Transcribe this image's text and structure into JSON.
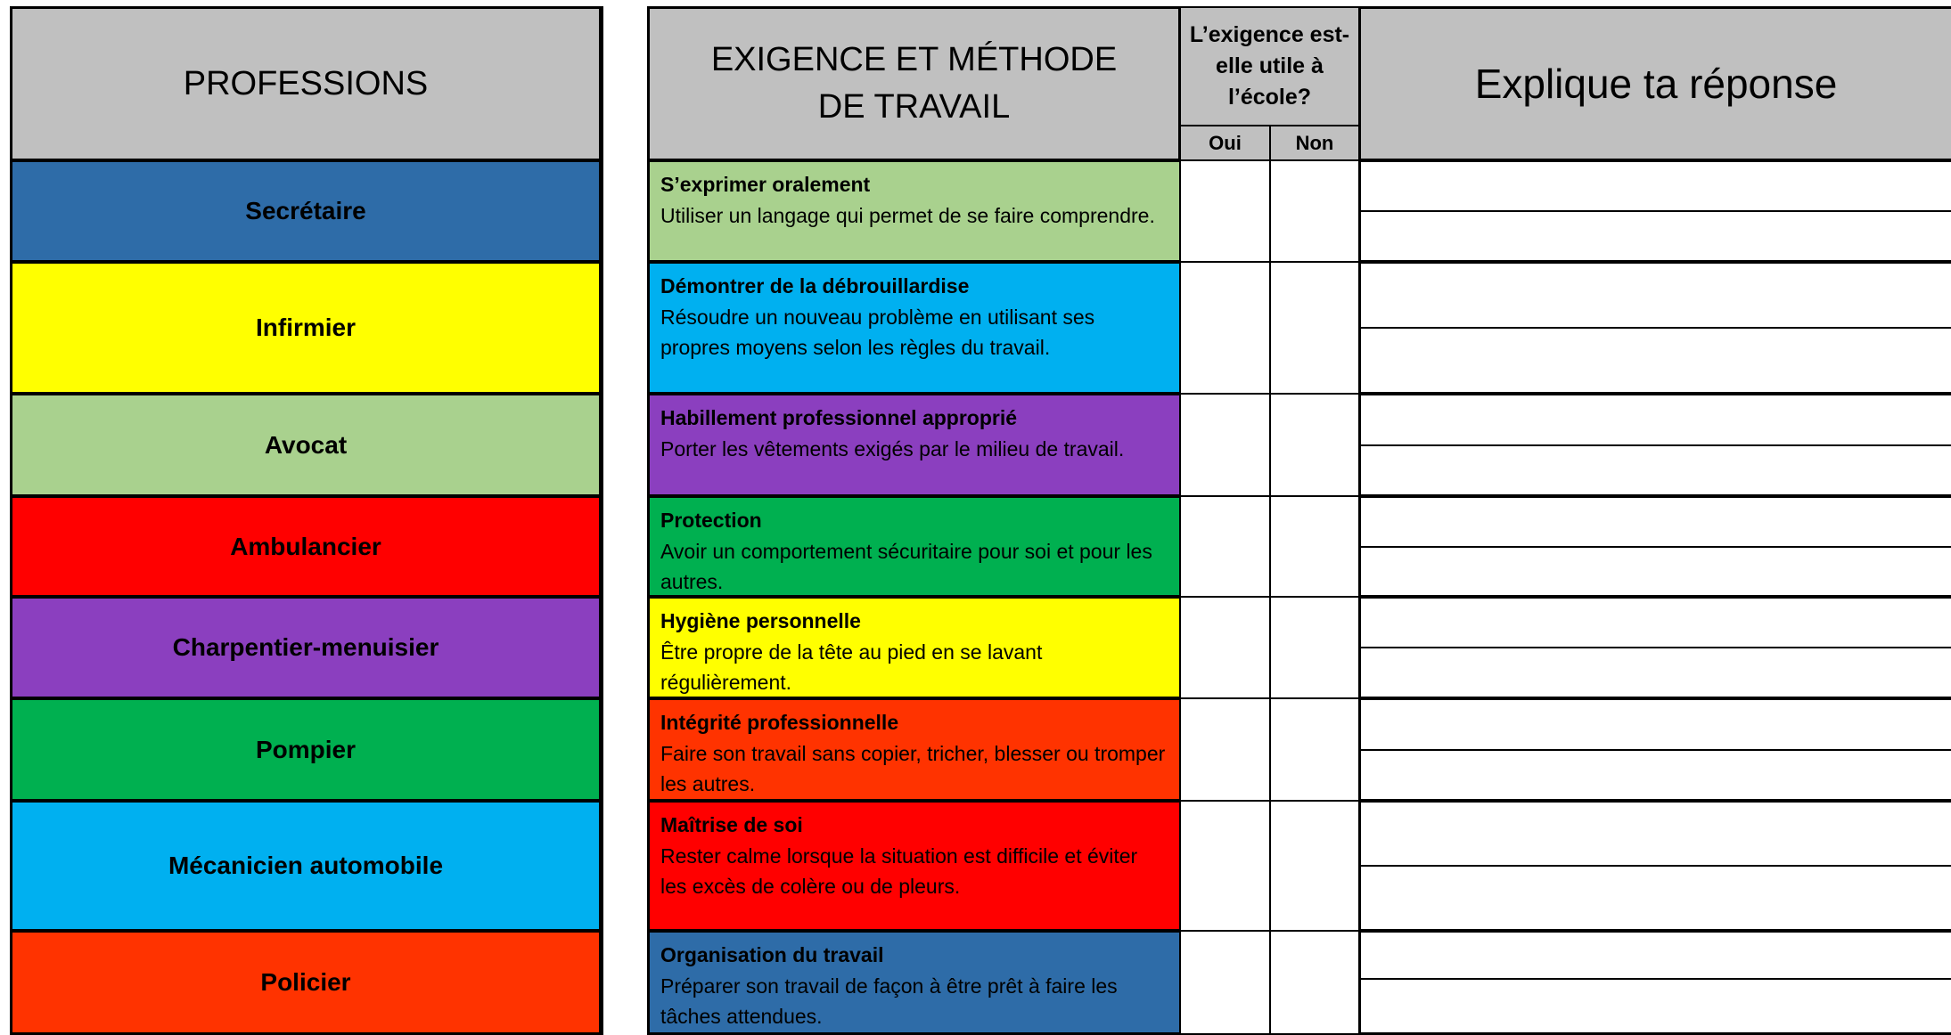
{
  "professions": {
    "header": "PROFESSIONS",
    "rows": [
      "Secrétaire",
      "Infirmier",
      "Avocat",
      "Ambulancier",
      "Charpentier-menuisier",
      "Pompier",
      "Mécanicien automobile",
      "Policier"
    ]
  },
  "requirements": {
    "header": "EXIGENCE ET MÉTHODE DE TRAVAIL",
    "question": "L’exigence est-elle utile à l’école?",
    "yes": "Oui",
    "no": "Non",
    "explain": "Explique ta réponse",
    "rows": [
      {
        "title": "S’exprimer oralement",
        "description": "Utiliser un langage qui permet de se faire comprendre."
      },
      {
        "title": "Démontrer de la débrouillardise",
        "description": "Résoudre un nouveau problème en utilisant ses propres moyens selon les règles du travail."
      },
      {
        "title": "Habillement professionnel approprié",
        "description": "Porter les vêtements exigés par le milieu de travail."
      },
      {
        "title": "Protection",
        "description": "Avoir un comportement sécuritaire pour soi et pour les autres."
      },
      {
        "title": "Hygiène personnelle",
        "description": "Être propre de la tête au pied en se lavant régulièrement."
      },
      {
        "title": "Intégrité professionnelle",
        "description": "Faire son travail sans copier, tricher, blesser ou tromper les autres."
      },
      {
        "title": "Maîtrise de soi",
        "description": "Rester calme lorsque la situation est difficile et éviter les excès de colère ou de pleurs."
      },
      {
        "title": "Organisation du travail",
        "description": "Préparer son travail de façon à être prêt à faire les tâches attendues."
      }
    ]
  }
}
